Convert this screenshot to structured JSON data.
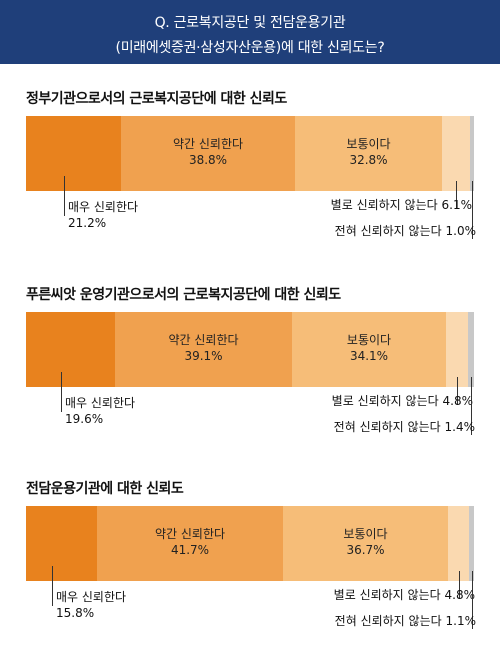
{
  "header": {
    "line1": "Q. 근로복지공단 및 전담운용기관",
    "line2": "(미래에셋증권·삼성자산운용)에 대한 신뢰도는?"
  },
  "colors": {
    "header_bg": "#1f3f7a",
    "very_trust": "#e8821e",
    "somewhat_trust": "#f0a14f",
    "neutral": "#f6bd78",
    "not_much": "#fad9b0",
    "not_at_all": "#c8c8c8"
  },
  "chart_data": [
    {
      "type": "bar",
      "stacked": true,
      "title": "정부기관으로서의 근로복지공단에 대한 신뢰도",
      "categories": [
        "매우 신뢰한다",
        "약간 신뢰한다",
        "보통이다",
        "별로 신뢰하지 않는다",
        "전혀 신뢰하지 않는다"
      ],
      "values": [
        21.2,
        38.8,
        32.8,
        6.1,
        1.0
      ],
      "labels": [
        "21.2%",
        "38.8%",
        "32.8%",
        "6.1%",
        "1.0%"
      ]
    },
    {
      "type": "bar",
      "stacked": true,
      "title": "푸른씨앗 운영기관으로서의 근로복지공단에 대한 신뢰도",
      "categories": [
        "매우 신뢰한다",
        "약간 신뢰한다",
        "보통이다",
        "별로 신뢰하지 않는다",
        "전혀 신뢰하지 않는다"
      ],
      "values": [
        19.6,
        39.1,
        34.1,
        4.8,
        1.4
      ],
      "labels": [
        "19.6%",
        "39.1%",
        "34.1%",
        "4.8%",
        "1.4%"
      ]
    },
    {
      "type": "bar",
      "stacked": true,
      "title": "전담운용기관에 대한 신뢰도",
      "categories": [
        "매우 신뢰한다",
        "약간 신뢰한다",
        "보통이다",
        "별로 신뢰하지 않는다",
        "전혀 신뢰하지 않는다"
      ],
      "values": [
        15.8,
        41.7,
        36.7,
        4.8,
        1.1
      ],
      "labels": [
        "15.8%",
        "41.7%",
        "36.7%",
        "4.8%",
        "1.1%"
      ]
    }
  ]
}
